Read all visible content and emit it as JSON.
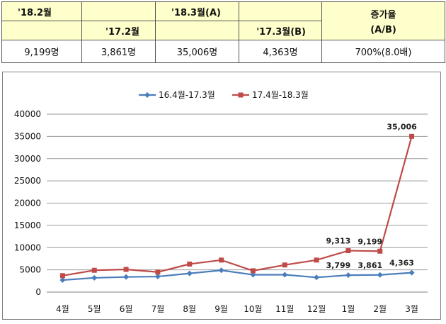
{
  "table": {
    "h_feb18": "'18.2월",
    "h_mar18": "'18.3월(A)",
    "h_growth": "증가율",
    "h_growth_sub": "(A/B)",
    "h_feb17": "'17.2월",
    "h_mar17": "'17.3월(B)",
    "v_feb18": "9,199명",
    "v_feb17": "3,861명",
    "v_mar18": "35,006명",
    "v_mar17": "4,363명",
    "v_growth": "700%(8.0배)"
  },
  "chart_data": {
    "type": "line",
    "categories": [
      "4월",
      "5월",
      "6월",
      "7월",
      "8월",
      "9월",
      "10월",
      "11월",
      "12월",
      "1월",
      "2월",
      "3월"
    ],
    "ylim": [
      0,
      40000
    ],
    "yticks": [
      "0",
      "5000",
      "10000",
      "15000",
      "20000",
      "25000",
      "30000",
      "35000",
      "40000"
    ],
    "legend_position": "top",
    "grid": true,
    "series": [
      {
        "name": "16.4월-17.3월",
        "color": "#4a7ebb",
        "marker": "diamond",
        "values": [
          2700,
          3200,
          3400,
          3500,
          4200,
          4900,
          3900,
          3900,
          3300,
          3799,
          3861,
          4363
        ],
        "labels": [
          null,
          null,
          null,
          null,
          null,
          null,
          null,
          null,
          null,
          "3,799",
          "3,861",
          "4,363"
        ]
      },
      {
        "name": "17.4월-18.3월",
        "color": "#be4b48",
        "marker": "square",
        "values": [
          3700,
          4900,
          5100,
          4500,
          6300,
          7200,
          4800,
          6100,
          7200,
          9313,
          9199,
          35006
        ],
        "labels": [
          null,
          null,
          null,
          null,
          null,
          null,
          null,
          null,
          null,
          "9,313",
          "9,199",
          "35,006"
        ]
      }
    ]
  }
}
